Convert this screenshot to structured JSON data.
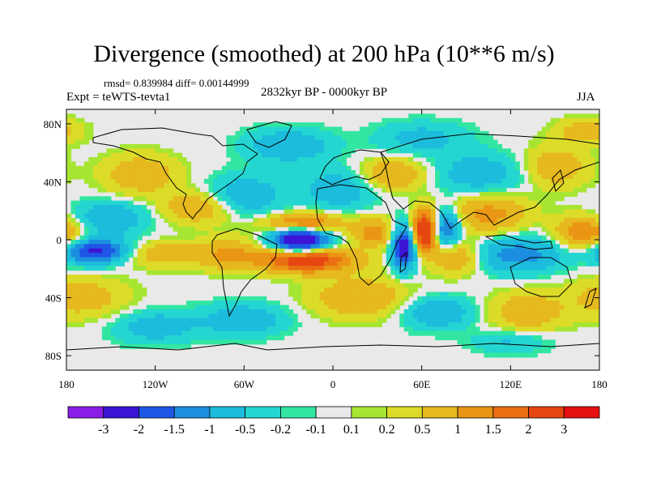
{
  "title": "Divergence (smoothed) at 200 hPa (10**6 m/s)",
  "stats": "rmsd= 0.839984 diff= 0.00144999",
  "experiment": "Expt = teWTS-tevta1",
  "period": "2832kyr BP - 0000kyr BP",
  "season": "JJA",
  "chart_data": {
    "type": "heatmap",
    "title": "Divergence (smoothed) at 200 hPa (10**6 m/s)",
    "x_axis": {
      "range": [
        -180,
        180
      ],
      "tick_values": [
        -180,
        -120,
        -60,
        0,
        60,
        120,
        180
      ],
      "tick_labels": [
        "180",
        "120W",
        "60W",
        "0",
        "60E",
        "120E",
        "180"
      ]
    },
    "y_axis": {
      "range": [
        -90,
        90
      ],
      "tick_values": [
        80,
        40,
        0,
        -40,
        -80
      ],
      "tick_labels": [
        "80N",
        "40N",
        "0",
        "40S",
        "80S"
      ]
    },
    "colorbar": {
      "colors": [
        "#8a1ee6",
        "#3c14d6",
        "#1e56e6",
        "#1c8ee0",
        "#1cbcdc",
        "#24d6d2",
        "#32e6a2",
        "#e9e9e9",
        "#a6e632",
        "#dcdc28",
        "#e6b91e",
        "#ea9614",
        "#ea6e12",
        "#e64610",
        "#e61010"
      ],
      "labels": [
        "-3",
        "-2",
        "-1.5",
        "-1",
        "-0.5",
        "-0.2",
        "-0.1",
        "0.1",
        "0.2",
        "0.5",
        "1",
        "1.5",
        "2",
        "3"
      ]
    },
    "features": [
      {
        "lon": -22,
        "lat": 0,
        "value": -3.4,
        "spread_lon": 13,
        "spread_lat": 6
      },
      {
        "lon": -18,
        "lat": -14,
        "value": 2.6,
        "spread_lon": 22,
        "spread_lat": 6
      },
      {
        "lon": -20,
        "lat": 11,
        "value": 1.8,
        "spread_lon": 18,
        "spread_lat": 5
      },
      {
        "lon": 28,
        "lat": 5,
        "value": 1.3,
        "spread_lon": 10,
        "spread_lat": 7
      },
      {
        "lon": 48,
        "lat": -5,
        "value": -2.6,
        "spread_lon": 6,
        "spread_lat": 11
      },
      {
        "lon": 62,
        "lat": 6,
        "value": 3.2,
        "spread_lon": 6,
        "spread_lat": 10
      },
      {
        "lon": 76,
        "lat": 8,
        "value": -1.8,
        "spread_lon": 7,
        "spread_lat": 9
      },
      {
        "lon": 84,
        "lat": -12,
        "value": 1.1,
        "spread_lon": 12,
        "spread_lat": 8
      },
      {
        "lon": 125,
        "lat": -10,
        "value": -1.3,
        "spread_lon": 22,
        "spread_lat": 9
      },
      {
        "lon": 106,
        "lat": 18,
        "value": 1.2,
        "spread_lon": 18,
        "spread_lat": 10
      },
      {
        "lon": 170,
        "lat": 5,
        "value": 1.5,
        "spread_lon": 14,
        "spread_lat": 8
      },
      {
        "lon": -160,
        "lat": -8,
        "value": -2.2,
        "spread_lon": 16,
        "spread_lat": 6
      },
      {
        "lon": -150,
        "lat": 15,
        "value": -1.0,
        "spread_lon": 18,
        "spread_lat": 8
      },
      {
        "lon": -115,
        "lat": -10,
        "value": 0.9,
        "spread_lon": 20,
        "spread_lat": 6
      },
      {
        "lon": -90,
        "lat": 22,
        "value": 1.0,
        "spread_lon": 18,
        "spread_lat": 8
      },
      {
        "lon": -60,
        "lat": 30,
        "value": -1.0,
        "spread_lon": 18,
        "spread_lat": 10
      },
      {
        "lon": -70,
        "lat": -10,
        "value": 1.0,
        "spread_lon": 14,
        "spread_lat": 8
      },
      {
        "lon": 5,
        "lat": 35,
        "value": -0.9,
        "spread_lon": 18,
        "spread_lat": 10
      },
      {
        "lon": 40,
        "lat": 45,
        "value": 1.1,
        "spread_lon": 16,
        "spread_lat": 8
      },
      {
        "lon": 100,
        "lat": 45,
        "value": -0.9,
        "spread_lon": 22,
        "spread_lat": 10
      },
      {
        "lon": 150,
        "lat": 50,
        "value": 0.9,
        "spread_lon": 16,
        "spread_lat": 10
      },
      {
        "lon": -130,
        "lat": 45,
        "value": 0.9,
        "spread_lon": 18,
        "spread_lat": 10
      },
      {
        "lon": -30,
        "lat": 65,
        "value": -1.0,
        "spread_lon": 20,
        "spread_lat": 8
      },
      {
        "lon": 170,
        "lat": 75,
        "value": 0.8,
        "spread_lon": 14,
        "spread_lat": 6
      },
      {
        "lon": -170,
        "lat": -40,
        "value": 0.8,
        "spread_lon": 22,
        "spread_lat": 10
      },
      {
        "lon": -60,
        "lat": -55,
        "value": -0.9,
        "spread_lon": 20,
        "spread_lat": 8
      },
      {
        "lon": 20,
        "lat": -40,
        "value": 1.0,
        "spread_lon": 24,
        "spread_lat": 10
      },
      {
        "lon": 70,
        "lat": -50,
        "value": -1.0,
        "spread_lon": 18,
        "spread_lat": 8
      },
      {
        "lon": 130,
        "lat": -50,
        "value": 0.9,
        "spread_lon": 18,
        "spread_lat": 10
      },
      {
        "lon": -120,
        "lat": -60,
        "value": -0.8,
        "spread_lon": 20,
        "spread_lat": 8
      },
      {
        "lon": 60,
        "lat": 70,
        "value": -0.7,
        "spread_lon": 22,
        "spread_lat": 8
      },
      {
        "lon": 120,
        "lat": -70,
        "value": -0.6,
        "spread_lon": 18,
        "spread_lat": 6
      }
    ]
  }
}
